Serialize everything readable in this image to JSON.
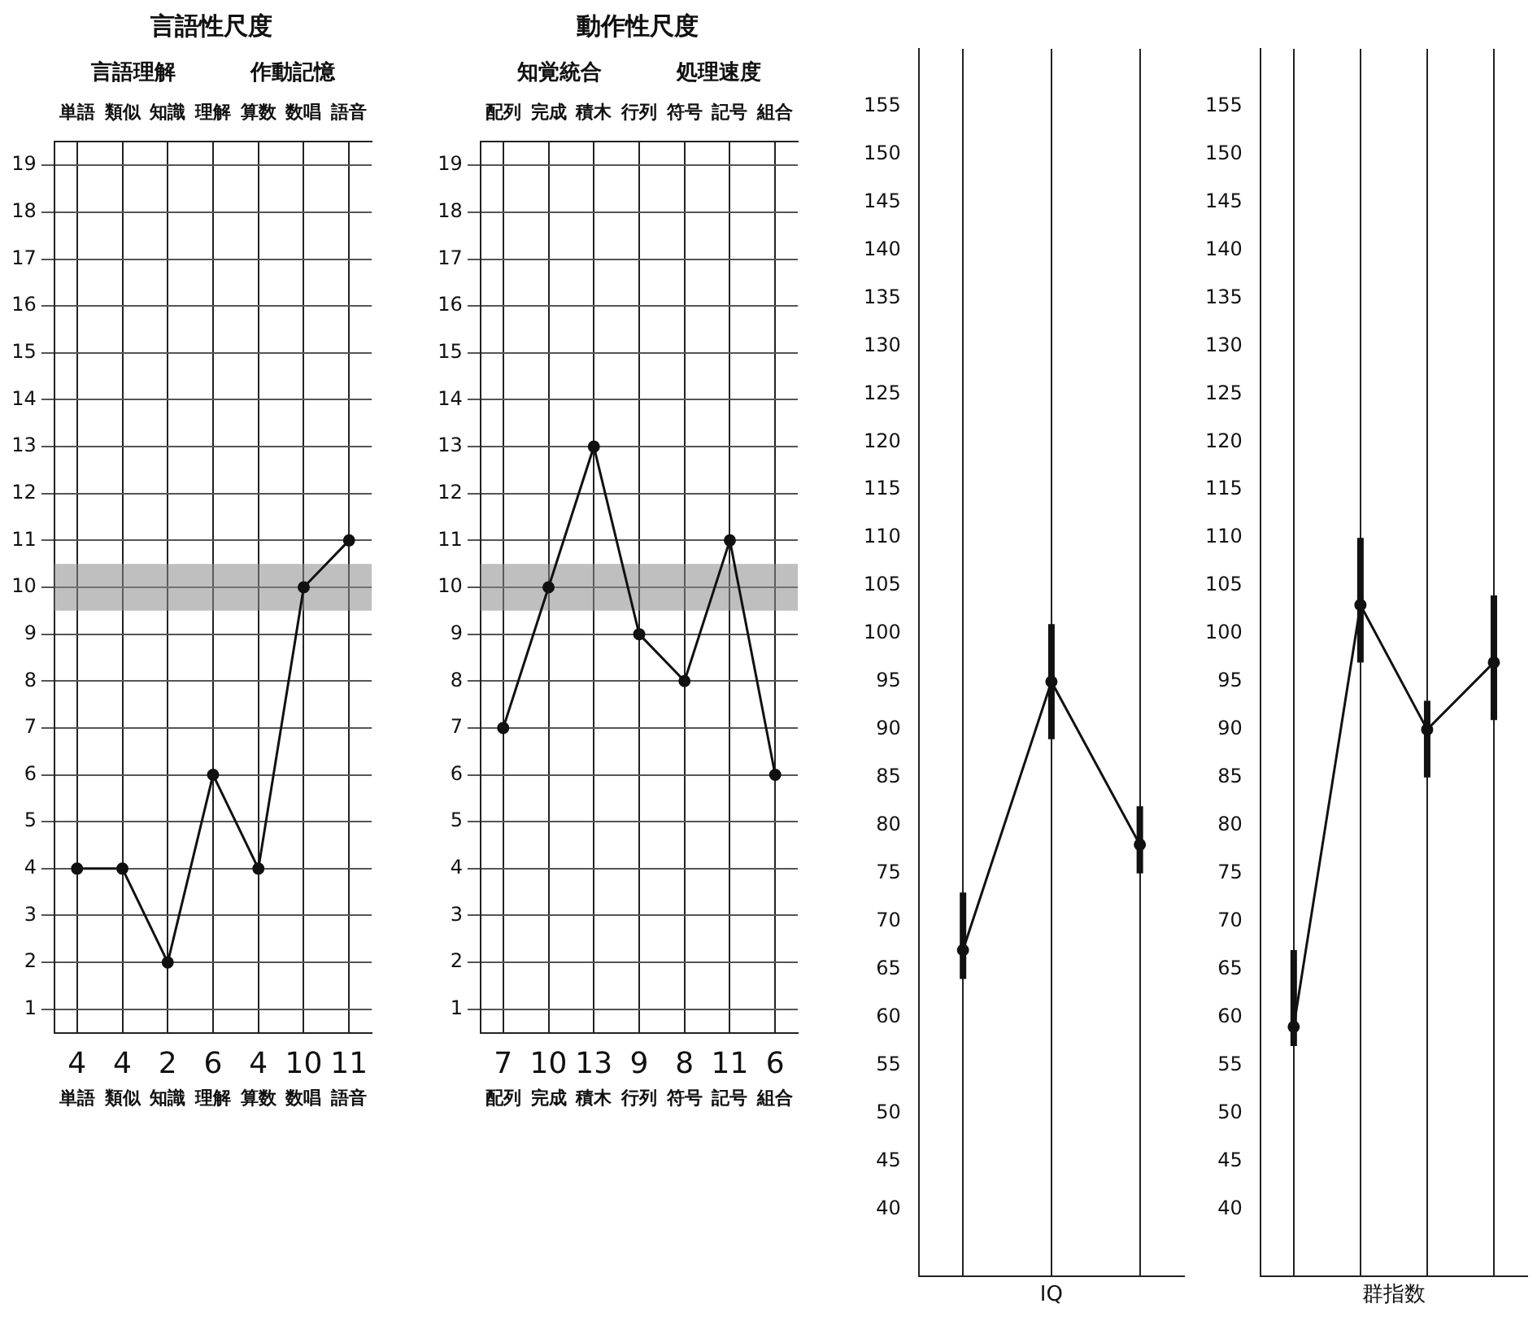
{
  "chart_data": [
    {
      "type": "line",
      "title": "言語性尺度",
      "annotations": [
        "言語理解",
        "作動記憶"
      ],
      "categories": [
        "単語",
        "類似",
        "知識",
        "理解",
        "算数",
        "数唱",
        "語音"
      ],
      "series": [
        {
          "color": "#111111",
          "values": [
            4,
            4,
            2,
            6,
            4,
            10,
            11
          ]
        }
      ],
      "ylim": [
        0.5,
        19.5
      ],
      "yticks": [
        1,
        2,
        3,
        4,
        5,
        6,
        7,
        8,
        9,
        10,
        11,
        12,
        13,
        14,
        15,
        16,
        17,
        18,
        19
      ],
      "grid": true,
      "marker": "circle",
      "line_style": "solid",
      "data_labels": true,
      "bands": [
        {
          "axis": "y",
          "from": 9.5,
          "to": 10.5,
          "color": "#8a8a8a"
        }
      ]
    },
    {
      "type": "line",
      "title": "動作性尺度",
      "annotations": [
        "知覚統合",
        "処理速度"
      ],
      "categories": [
        "配列",
        "完成",
        "積木",
        "行列",
        "符号",
        "記号",
        "組合"
      ],
      "series": [
        {
          "color": "#111111",
          "values": [
            7,
            10,
            13,
            9,
            8,
            11,
            6
          ]
        }
      ],
      "ylim": [
        0.5,
        19.5
      ],
      "yticks": [
        1,
        2,
        3,
        4,
        5,
        6,
        7,
        8,
        9,
        10,
        11,
        12,
        13,
        14,
        15,
        16,
        17,
        18,
        19
      ],
      "grid": true,
      "marker": "circle",
      "line_style": "solid",
      "data_labels": true,
      "bands": [
        {
          "axis": "y",
          "from": 9.5,
          "to": 10.5,
          "color": "#8a8a8a"
        }
      ]
    },
    {
      "type": "line",
      "xlabel": "IQ",
      "categories": [
        null,
        null,
        null
      ],
      "series": [
        {
          "color": "#111111",
          "values": [
            67,
            95,
            78
          ],
          "errors": [
            [
              64,
              73
            ],
            [
              89,
              101
            ],
            [
              75,
              82
            ]
          ]
        }
      ],
      "ylim": [
        33,
        161
      ],
      "yticks": [
        40,
        45,
        50,
        55,
        60,
        65,
        70,
        75,
        80,
        85,
        90,
        95,
        100,
        105,
        110,
        115,
        120,
        125,
        130,
        135,
        140,
        145,
        150,
        155
      ],
      "grid": "x",
      "marker": "circle",
      "line_style": "solid",
      "tick_labels": "y"
    },
    {
      "type": "line",
      "xlabel": "群指数",
      "categories": [
        null,
        null,
        null,
        null
      ],
      "series": [
        {
          "color": "#111111",
          "values": [
            59,
            103,
            90,
            97
          ],
          "errors": [
            [
              57,
              67
            ],
            [
              97,
              110
            ],
            [
              85,
              93
            ],
            [
              91,
              104
            ]
          ]
        }
      ],
      "ylim": [
        33,
        161
      ],
      "yticks": [
        40,
        45,
        50,
        55,
        60,
        65,
        70,
        75,
        80,
        85,
        90,
        95,
        100,
        105,
        110,
        115,
        120,
        125,
        130,
        135,
        140,
        145,
        150,
        155
      ],
      "grid": "x",
      "marker": "circle",
      "line_style": "solid",
      "tick_labels": "y"
    }
  ]
}
